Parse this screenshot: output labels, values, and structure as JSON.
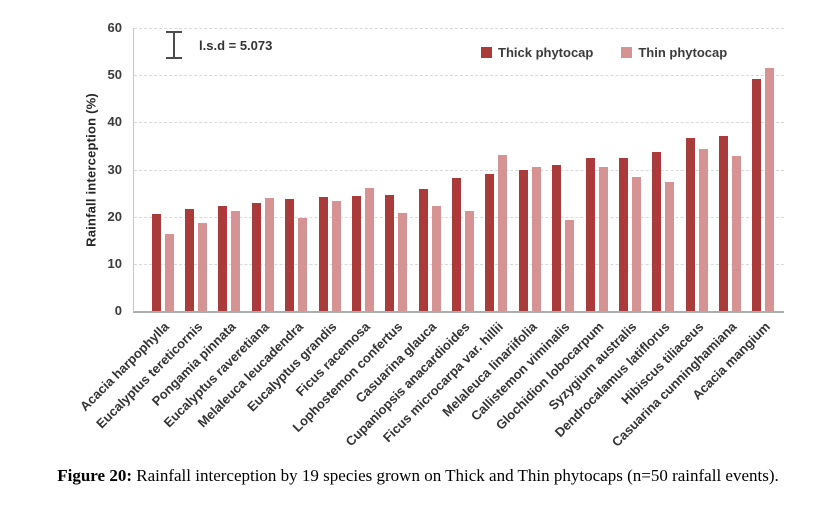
{
  "figure": {
    "caption_bold": "Figure 20:",
    "caption_rest": " Rainfall interception by 19 species grown on Thick and Thin phytocaps (n=50 rainfall events)."
  },
  "chart_data": {
    "type": "bar",
    "title": "",
    "xlabel": "",
    "ylabel": "Rainfall interception (%)",
    "ylim": [
      0,
      60
    ],
    "yticks": [
      0,
      10,
      20,
      30,
      40,
      50,
      60
    ],
    "grid": "horizontal-dashed",
    "legend_position": "top-inside",
    "annotation": "l.s.d = 5.073",
    "categories": [
      "Acacia harpophylla",
      "Eucalyptus tereticornis",
      "Pongamia pinnata",
      "Eucalyptus raveretiana",
      "Melaleuca leucadendra",
      "Eucalyptus grandis",
      "Ficus racemosa",
      "Lophostemon confertus",
      "Casuarina glauca",
      "Cupaniopsis anacardioides",
      "Ficus microcarpa var. hillii",
      "Melaleuca linariifolia",
      "Callistemon viminalis",
      "Glochidion lobocarpum",
      "Syzygium australis",
      "Dendrocalamus latiflorus",
      "Hibiscus tiliaceus",
      "Casuarina cunninghamiana",
      "Acacia mangium"
    ],
    "series": [
      {
        "name": "Thick phytocap",
        "color": "#A93B3B",
        "values": [
          20.5,
          21.7,
          22.3,
          23.0,
          23.7,
          24.1,
          24.4,
          24.7,
          25.8,
          28.2,
          29.0,
          29.8,
          31.0,
          32.5,
          32.4,
          33.8,
          36.6,
          37.0,
          49.2
        ]
      },
      {
        "name": "Thin phytocap",
        "color": "#D59393",
        "values": [
          16.3,
          18.7,
          21.2,
          24.0,
          19.7,
          23.4,
          26.0,
          20.8,
          22.2,
          21.3,
          33.0,
          30.5,
          19.2,
          30.5,
          28.4,
          27.4,
          34.4,
          32.8,
          51.5
        ]
      }
    ],
    "colors": {
      "grid": "#d9d9d9",
      "axis": "#a8aeac",
      "text": "#3b3b3b"
    }
  }
}
